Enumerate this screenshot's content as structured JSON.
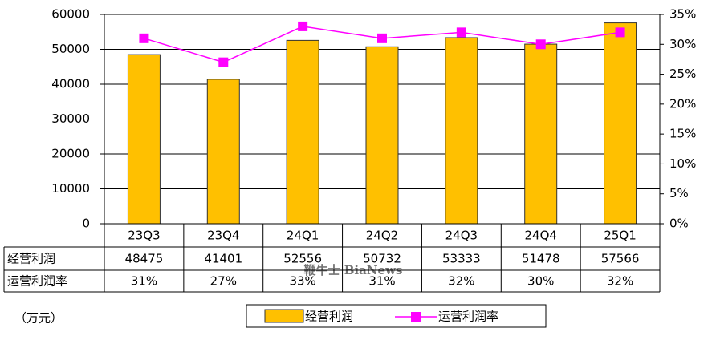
{
  "chart_data": {
    "type": "bar-line",
    "unit_label": "（万元）",
    "watermark": "鞭牛士 BiaNews",
    "categories": [
      "23Q3",
      "23Q4",
      "24Q1",
      "24Q2",
      "24Q3",
      "24Q4",
      "25Q1"
    ],
    "series": [
      {
        "name": "经营利润",
        "color": "#ffc000",
        "values": [
          48475,
          41401,
          52556,
          50732,
          53333,
          51478,
          57566
        ]
      },
      {
        "name": "运营利润率",
        "color": "#ff00ff",
        "axis": "y2",
        "values": [
          31,
          27,
          33,
          31,
          32,
          30,
          32
        ],
        "value_labels": [
          "31%",
          "27%",
          "33%",
          "31%",
          "32%",
          "30%",
          "32%"
        ]
      }
    ],
    "ylim": [
      0,
      60000
    ],
    "yticks": [
      0,
      10000,
      20000,
      30000,
      40000,
      50000,
      60000
    ],
    "y2lim": [
      0,
      35
    ],
    "y2ticks": [
      {
        "value": 0,
        "label": "0%"
      },
      {
        "value": 5,
        "label": "5%"
      },
      {
        "value": 10,
        "label": "10%"
      },
      {
        "value": 15,
        "label": "15%"
      },
      {
        "value": 20,
        "label": "20%"
      },
      {
        "value": 25,
        "label": "25%"
      },
      {
        "value": 30,
        "label": "30%"
      },
      {
        "value": 35,
        "label": "35%"
      }
    ],
    "grid": true,
    "legend": "bottom"
  }
}
